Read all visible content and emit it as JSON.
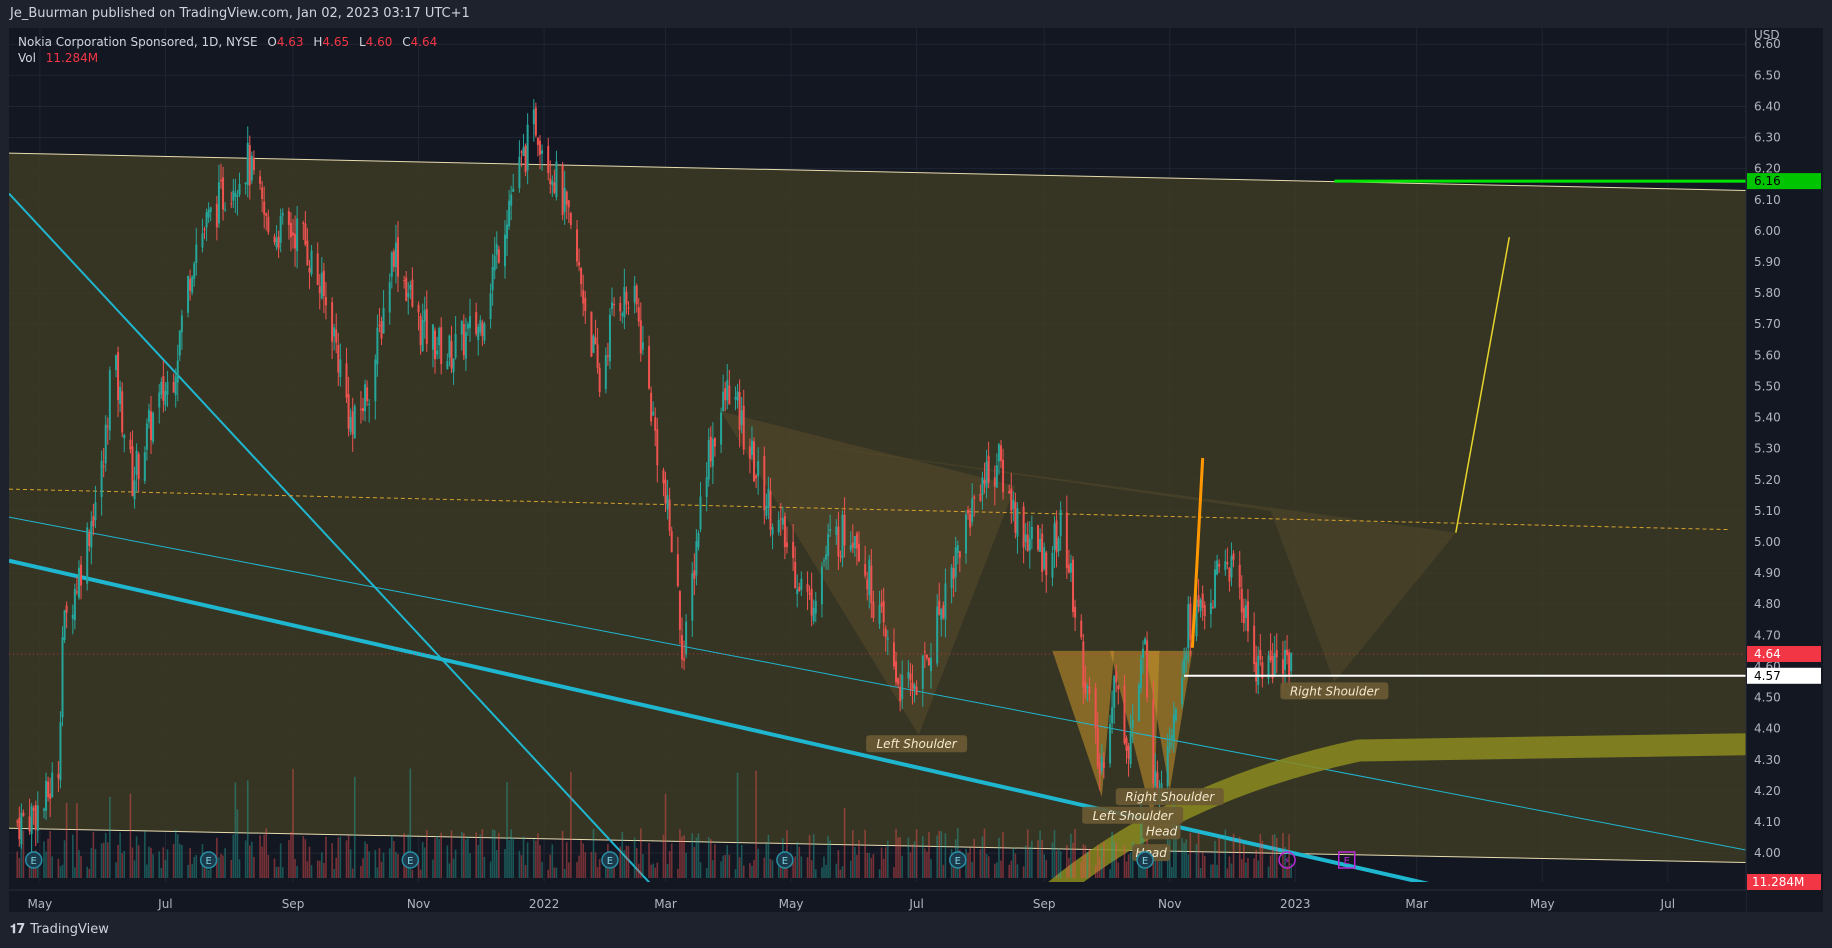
{
  "header": {
    "publisher": "Je_Buurman published on TradingView.com, Jan 02, 2023 03:17 UTC+1"
  },
  "legend": {
    "symbol": "Nokia Corporation Sponsored, 1D, NYSE",
    "o_label": "O",
    "o_value": "4.63",
    "h_label": "H",
    "h_value": "4.65",
    "l_label": "L",
    "l_value": "4.60",
    "c_label": "C",
    "c_value": "4.64",
    "vol_label": "Vol",
    "vol_value": "11.284M"
  },
  "footer": {
    "brand": "TradingView"
  },
  "colors": {
    "up": "#26a69a",
    "down": "#ef5350",
    "bg": "#131722",
    "channel": "#3b3a25",
    "cyan": "#1fb6cf",
    "pattern": "#c8932a",
    "green_level": "#00e600"
  },
  "chart_data": {
    "type": "candlestick",
    "currency": "USD",
    "ylim": [
      3.92,
      6.62
    ],
    "x_ticks": [
      "May",
      "Jul",
      "Sep",
      "Nov",
      "2022",
      "Mar",
      "May",
      "Jul",
      "Sep",
      "Nov",
      "2023",
      "Mar",
      "May",
      "Jul"
    ],
    "y_ticks": [
      "4.00",
      "4.10",
      "4.20",
      "4.30",
      "4.40",
      "4.50",
      "4.60",
      "4.70",
      "4.80",
      "4.90",
      "5.00",
      "5.10",
      "5.20",
      "5.30",
      "5.40",
      "5.50",
      "5.60",
      "5.70",
      "5.80",
      "5.90",
      "6.00",
      "6.10",
      "6.20",
      "6.30",
      "6.40",
      "6.50",
      "6.60"
    ],
    "price_labels": {
      "target": "6.16",
      "last": "4.64",
      "neckline": "4.57",
      "volume": "11.284M"
    },
    "last_bar": {
      "open": 4.63,
      "high": 4.65,
      "low": 4.6,
      "close": 4.64,
      "volume": "11.284M"
    },
    "series_close": [
      {
        "date": "2021-04-20",
        "close": 4.1
      },
      {
        "date": "2021-05-03",
        "close": 4.15
      },
      {
        "date": "2021-05-10",
        "close": 4.28
      },
      {
        "date": "2021-05-12",
        "close": 4.7
      },
      {
        "date": "2021-05-20",
        "close": 4.9
      },
      {
        "date": "2021-06-01",
        "close": 5.25
      },
      {
        "date": "2021-06-05",
        "close": 5.62
      },
      {
        "date": "2021-06-15",
        "close": 5.2
      },
      {
        "date": "2021-06-25",
        "close": 5.4
      },
      {
        "date": "2021-07-05",
        "close": 5.55
      },
      {
        "date": "2021-07-15",
        "close": 5.95
      },
      {
        "date": "2021-08-01",
        "close": 6.15
      },
      {
        "date": "2021-08-10",
        "close": 6.22
      },
      {
        "date": "2021-08-20",
        "close": 6.0
      },
      {
        "date": "2021-09-05",
        "close": 6.0
      },
      {
        "date": "2021-09-20",
        "close": 5.7
      },
      {
        "date": "2021-09-30",
        "close": 5.35
      },
      {
        "date": "2021-10-10",
        "close": 5.55
      },
      {
        "date": "2021-10-20",
        "close": 5.95
      },
      {
        "date": "2021-11-01",
        "close": 5.7
      },
      {
        "date": "2021-11-15",
        "close": 5.6
      },
      {
        "date": "2021-12-01",
        "close": 5.7
      },
      {
        "date": "2021-12-15",
        "close": 6.1
      },
      {
        "date": "2021-12-28",
        "close": 6.35
      },
      {
        "date": "2022-01-10",
        "close": 6.1
      },
      {
        "date": "2022-01-20",
        "close": 5.8
      },
      {
        "date": "2022-01-28",
        "close": 5.5
      },
      {
        "date": "2022-02-05",
        "close": 5.8
      },
      {
        "date": "2022-02-15",
        "close": 5.75
      },
      {
        "date": "2022-02-25",
        "close": 5.3
      },
      {
        "date": "2022-03-05",
        "close": 4.95
      },
      {
        "date": "2022-03-10",
        "close": 4.62
      },
      {
        "date": "2022-03-20",
        "close": 5.25
      },
      {
        "date": "2022-04-01",
        "close": 5.5
      },
      {
        "date": "2022-04-15",
        "close": 5.2
      },
      {
        "date": "2022-04-25",
        "close": 5.05
      },
      {
        "date": "2022-05-10",
        "close": 4.8
      },
      {
        "date": "2022-05-20",
        "close": 5.0
      },
      {
        "date": "2022-06-01",
        "close": 5.05
      },
      {
        "date": "2022-06-15",
        "close": 4.7
      },
      {
        "date": "2022-06-25",
        "close": 4.5
      },
      {
        "date": "2022-07-05",
        "close": 4.6
      },
      {
        "date": "2022-07-15",
        "close": 4.85
      },
      {
        "date": "2022-08-01",
        "close": 5.2
      },
      {
        "date": "2022-08-10",
        "close": 5.25
      },
      {
        "date": "2022-08-20",
        "close": 5.05
      },
      {
        "date": "2022-09-01",
        "close": 4.95
      },
      {
        "date": "2022-09-10",
        "close": 5.05
      },
      {
        "date": "2022-09-20",
        "close": 4.6
      },
      {
        "date": "2022-09-28",
        "close": 4.25
      },
      {
        "date": "2022-10-05",
        "close": 4.55
      },
      {
        "date": "2022-10-12",
        "close": 4.35
      },
      {
        "date": "2022-10-20",
        "close": 4.65
      },
      {
        "date": "2022-10-25",
        "close": 4.2
      },
      {
        "date": "2022-11-01",
        "close": 4.4
      },
      {
        "date": "2022-11-05",
        "close": 4.55
      },
      {
        "date": "2022-11-10",
        "close": 4.75
      },
      {
        "date": "2022-11-20",
        "close": 4.8
      },
      {
        "date": "2022-11-28",
        "close": 4.95
      },
      {
        "date": "2022-12-05",
        "close": 4.85
      },
      {
        "date": "2022-12-12",
        "close": 4.62
      },
      {
        "date": "2022-12-20",
        "close": 4.6
      },
      {
        "date": "2022-12-30",
        "close": 4.64
      }
    ],
    "annotations": [
      {
        "text": "Left Shoulder",
        "date": "2022-07-01",
        "price": 4.35
      },
      {
        "text": "Right Shoulder",
        "date": "2023-01-20",
        "price": 4.52
      },
      {
        "text": "Right Shoulder",
        "date": "2022-11-01",
        "price": 4.18
      },
      {
        "text": "Left Shoulder",
        "date": "2022-10-14",
        "price": 4.12
      },
      {
        "text": "Head",
        "date": "2022-10-28",
        "price": 4.07
      },
      {
        "text": "Head",
        "date": "2022-10-23",
        "price": 4.0
      }
    ],
    "events": [
      "E",
      "E",
      "E",
      "E",
      "E",
      "E",
      "E",
      "E"
    ]
  }
}
